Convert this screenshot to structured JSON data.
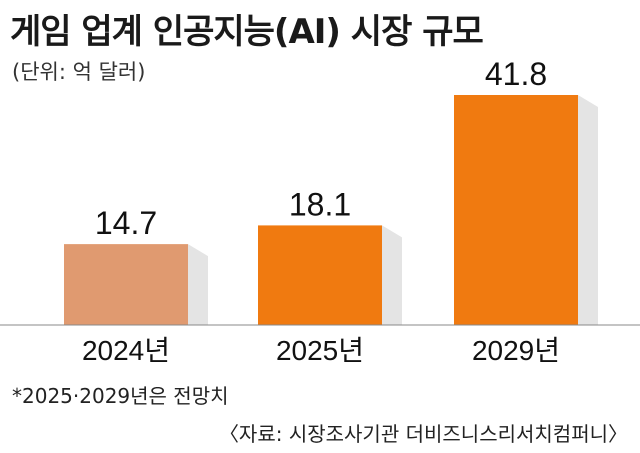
{
  "chart_data": {
    "type": "bar",
    "title": "게임 업계 인공지능(AI) 시장 규모",
    "unit": "(단위: 억 달러)",
    "categories": [
      "2024년",
      "2025년",
      "2029년"
    ],
    "values": [
      14.7,
      18.1,
      41.8
    ],
    "value_labels": [
      "14.7",
      "18.1",
      "41.8"
    ],
    "colors": [
      "#e09a70",
      "#f07a10",
      "#f07a10"
    ],
    "shadow_color": "#e4e4e4",
    "ylim": [
      0,
      41.8
    ],
    "grid": false,
    "legend": "none"
  },
  "footnote": "*2025·2029년은 전망치",
  "source": "〈자료: 시장조사기관 더비즈니스리서치컴퍼니〉"
}
